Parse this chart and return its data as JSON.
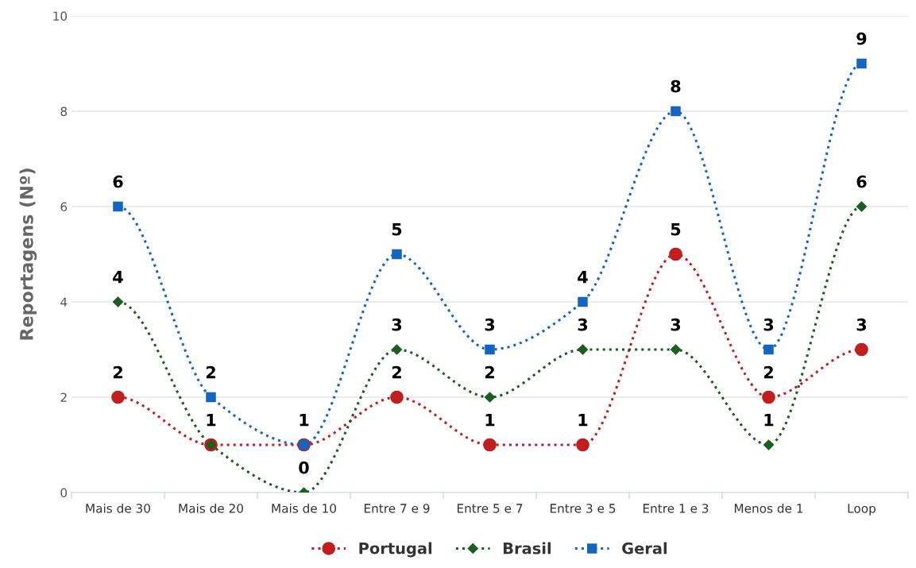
{
  "chart_data": {
    "type": "line",
    "ylabel": "Reportagens (Nº)",
    "categories": [
      "Mais de 30",
      "Mais de 20",
      "Mais de 10",
      "Entre 7 e 9",
      "Entre 5 e 7",
      "Entre 3 e 5",
      "Entre 1 e 3",
      "Menos de 1",
      "Loop"
    ],
    "series": [
      {
        "name": "Portugal",
        "color": "#c01f1f",
        "marker": "circle",
        "values": [
          2,
          1,
          1,
          2,
          1,
          1,
          5,
          2,
          3
        ],
        "value_labels": [
          "2",
          "1",
          null,
          "2",
          "1",
          "1",
          "5",
          "2",
          "3"
        ]
      },
      {
        "name": "Brasil",
        "color": "#1b5e20",
        "marker": "diamond",
        "values": [
          4,
          1,
          0,
          3,
          2,
          3,
          3,
          1,
          6
        ],
        "value_labels": [
          "4",
          null,
          "0",
          "3",
          "2",
          "3",
          "3",
          "1",
          "6"
        ]
      },
      {
        "name": "Geral",
        "color": "#1565c0",
        "marker": "square",
        "values": [
          6,
          2,
          1,
          5,
          3,
          4,
          8,
          3,
          9
        ],
        "value_labels": [
          "6",
          "2",
          "1",
          "5",
          "3",
          "4",
          "8",
          "3",
          "9"
        ]
      }
    ],
    "ylim": [
      0,
      10
    ],
    "yticks": [
      0,
      2,
      4,
      6,
      8,
      10
    ],
    "grid": "y",
    "legend": "bottom",
    "line_style": "dotted"
  }
}
